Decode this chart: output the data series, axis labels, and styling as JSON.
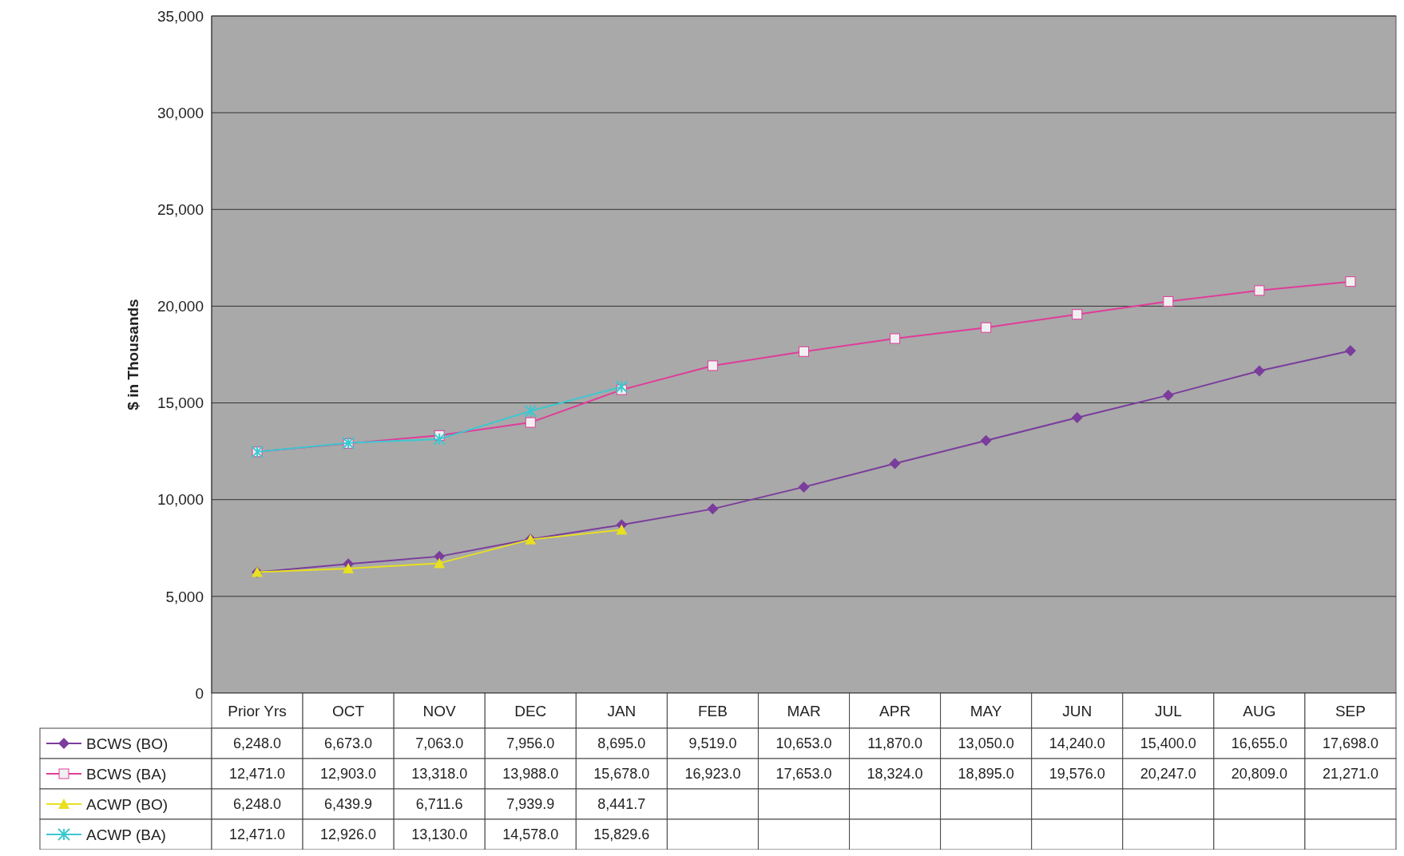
{
  "chart_data": {
    "type": "line",
    "ylabel": "$ in Thousands",
    "categories": [
      "Prior Yrs",
      "OCT",
      "NOV",
      "DEC",
      "JAN",
      "FEB",
      "MAR",
      "APR",
      "MAY",
      "JUN",
      "JUL",
      "AUG",
      "SEP"
    ],
    "ylim": [
      0,
      35000
    ],
    "yticks": [
      {
        "value": 0,
        "label": "0"
      },
      {
        "value": 5000,
        "label": "5,000"
      },
      {
        "value": 10000,
        "label": "10,000"
      },
      {
        "value": 15000,
        "label": "15,000"
      },
      {
        "value": 20000,
        "label": "20,000"
      },
      {
        "value": 25000,
        "label": "25,000"
      },
      {
        "value": 30000,
        "label": "30,000"
      },
      {
        "value": 35000,
        "label": "35,000"
      }
    ],
    "grid": "y",
    "legend": "bottom",
    "series": [
      {
        "name": "BCWS (BO)",
        "color": "#7a3d9c",
        "marker": "diamond",
        "values": [
          6248.0,
          6673.0,
          7063.0,
          7956.0,
          8695.0,
          9519.0,
          10653.0,
          11870.0,
          13050.0,
          14240.0,
          15400.0,
          16655.0,
          17698.0
        ],
        "value_labels": [
          "6,248.0",
          "6,673.0",
          "7,063.0",
          "7,956.0",
          "8,695.0",
          "9,519.0",
          "10,653.0",
          "11,870.0",
          "13,050.0",
          "14,240.0",
          "15,400.0",
          "16,655.0",
          "17,698.0"
        ]
      },
      {
        "name": "BCWS (BA)",
        "color": "#e03c9a",
        "marker": "square",
        "values": [
          12471.0,
          12903.0,
          13318.0,
          13988.0,
          15678.0,
          16923.0,
          17653.0,
          18324.0,
          18895.0,
          19576.0,
          20247.0,
          20809.0,
          21271.0
        ],
        "value_labels": [
          "12,471.0",
          "12,903.0",
          "13,318.0",
          "13,988.0",
          "15,678.0",
          "16,923.0",
          "17,653.0",
          "18,324.0",
          "18,895.0",
          "19,576.0",
          "20,247.0",
          "20,809.0",
          "21,271.0"
        ]
      },
      {
        "name": "ACWP (BO)",
        "color": "#e8e020",
        "marker": "triangle",
        "values": [
          6248.0,
          6439.9,
          6711.6,
          7939.9,
          8441.7,
          null,
          null,
          null,
          null,
          null,
          null,
          null,
          null
        ],
        "value_labels": [
          "6,248.0",
          "6,439.9",
          "6,711.6",
          "7,939.9",
          "8,441.7",
          null,
          null,
          null,
          null,
          null,
          null,
          null,
          null
        ]
      },
      {
        "name": "ACWP (BA)",
        "color": "#3cc8d0",
        "marker": "cross",
        "values": [
          12471.0,
          12926.0,
          13130.0,
          14578.0,
          15829.6,
          null,
          null,
          null,
          null,
          null,
          null,
          null,
          null
        ],
        "value_labels": [
          "12,471.0",
          "12,926.0",
          "13,130.0",
          "14,578.0",
          "15,829.6",
          null,
          null,
          null,
          null,
          null,
          null,
          null,
          null
        ]
      }
    ]
  }
}
